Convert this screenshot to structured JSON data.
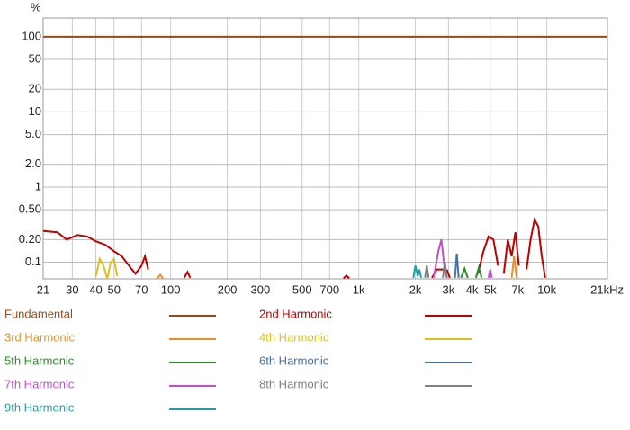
{
  "chart_data": {
    "type": "line",
    "y_unit": "%",
    "log_x": true,
    "log_y": true,
    "grid": true,
    "xlim": [
      21,
      21000
    ],
    "ylim": [
      0.06,
      178
    ],
    "xticks": [
      21,
      30,
      40,
      50,
      70,
      100,
      200,
      300,
      500,
      700,
      {
        "value": 1000,
        "label": "1k"
      },
      {
        "value": 2000,
        "label": "2k"
      },
      {
        "value": 3000,
        "label": "3k"
      },
      {
        "value": 4000,
        "label": "4k"
      },
      {
        "value": 5000,
        "label": "5k"
      },
      {
        "value": 7000,
        "label": "7k"
      },
      {
        "value": 10000,
        "label": "10k"
      },
      {
        "value": 21000,
        "label": "21kHz"
      }
    ],
    "yticks": [
      100,
      50,
      20,
      10,
      {
        "value": 5,
        "label": "5.0"
      },
      {
        "value": 2,
        "label": "2.0"
      },
      1,
      {
        "value": 0.5,
        "label": "0.50"
      },
      {
        "value": 0.2,
        "label": "0.20"
      },
      0.1
    ],
    "series": [
      {
        "name": "Fundamental",
        "color": "#9a4a1a",
        "x": [
          21,
          21000
        ],
        "values": [
          100,
          100
        ]
      },
      {
        "name": "2nd Harmonic",
        "color": "#c00000",
        "x": [
          21,
          25,
          28,
          32,
          36,
          40,
          45,
          50,
          55,
          60,
          65,
          70,
          73,
          76,
          78,
          118,
          123,
          127,
          128,
          830,
          860,
          890,
          900,
          2450,
          2600,
          2800,
          2950,
          3050,
          3100,
          4300,
          4600,
          4900,
          5200,
          5500,
          5800,
          5900,
          6200,
          6500,
          6800,
          7100,
          7300,
          7800,
          8200,
          8600,
          9000,
          9400,
          9800
        ],
        "values": [
          0.26,
          0.25,
          0.2,
          0.23,
          0.22,
          0.19,
          0.17,
          0.14,
          0.12,
          0.09,
          0.07,
          0.09,
          0.12,
          0.08,
          null,
          0.062,
          0.074,
          0.062,
          null,
          0.061,
          0.066,
          0.061,
          null,
          0.062,
          0.08,
          0.08,
          0.078,
          0.062,
          null,
          0.07,
          0.14,
          0.22,
          0.2,
          0.09,
          null,
          0.07,
          0.2,
          0.12,
          0.25,
          0.09,
          null,
          0.08,
          0.2,
          0.37,
          0.3,
          0.12,
          0.062
        ]
      },
      {
        "name": "3rd Harmonic",
        "color": "#e8902a",
        "x": [
          85,
          88,
          91,
          92,
          6500,
          6700,
          6900
        ],
        "values": [
          0.061,
          0.068,
          0.061,
          null,
          0.062,
          0.12,
          0.062
        ]
      },
      {
        "name": "4th Harmonic",
        "color": "#e0c020",
        "x": [
          40,
          42,
          44,
          46,
          48,
          50,
          52
        ],
        "values": [
          0.065,
          0.11,
          0.09,
          0.06,
          0.1,
          0.11,
          0.065
        ]
      },
      {
        "name": "5th Harmonic",
        "color": "#2a8a2a",
        "x": [
          3500,
          3650,
          3800,
          3900,
          4200,
          4350,
          4500
        ],
        "values": [
          0.062,
          0.082,
          0.062,
          null,
          0.062,
          0.085,
          0.062
        ]
      },
      {
        "name": "6th Harmonic",
        "color": "#4a6fa5",
        "x": [
          3250,
          3320,
          3400
        ],
        "values": [
          0.062,
          0.13,
          0.062
        ]
      },
      {
        "name": "7th Harmonic",
        "color": "#c050d0",
        "x": [
          2500,
          2650,
          2750,
          2850,
          2950,
          3000,
          4900,
          5000,
          5100
        ],
        "values": [
          0.062,
          0.14,
          0.2,
          0.09,
          0.062,
          null,
          0.062,
          0.08,
          0.062
        ]
      },
      {
        "name": "8th Harmonic",
        "color": "#808080",
        "x": [
          2250,
          2300,
          2350,
          2400,
          2800,
          2870,
          2940
        ],
        "values": [
          0.062,
          0.09,
          0.062,
          null,
          0.062,
          0.1,
          0.062
        ]
      },
      {
        "name": "9th Harmonic",
        "color": "#20a0a0",
        "x": [
          1950,
          2000,
          2060,
          2100,
          2150
        ],
        "values": [
          0.062,
          0.09,
          0.065,
          0.08,
          0.062
        ]
      }
    ]
  }
}
